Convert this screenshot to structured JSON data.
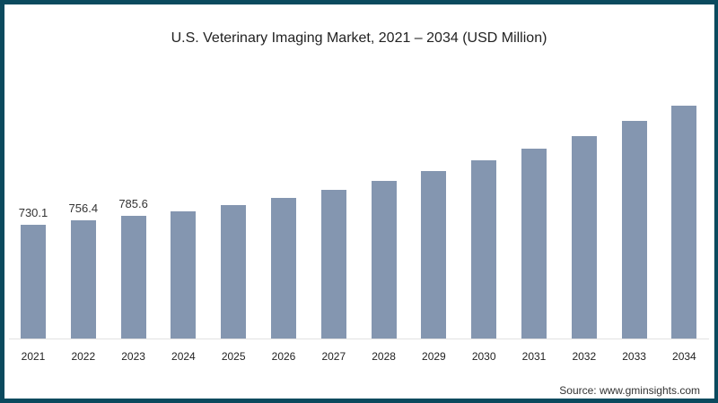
{
  "frame_color": "#0b4a5e",
  "bar_color": "#8496b0",
  "chart_data": {
    "type": "bar",
    "title": "U.S. Veterinary Imaging Market, 2021 – 2034 (USD Million)",
    "xlabel": "",
    "ylabel": "USD Million",
    "categories": [
      "2021",
      "2022",
      "2023",
      "2024",
      "2025",
      "2026",
      "2027",
      "2028",
      "2029",
      "2030",
      "2031",
      "2032",
      "2033",
      "2034"
    ],
    "values": [
      730.1,
      756.4,
      785.6,
      819,
      857,
      903,
      955,
      1012,
      1075,
      1145,
      1219,
      1300,
      1397,
      1495
    ],
    "data_labels": [
      "730.1",
      "756.4",
      "785.6",
      "",
      "",
      "",
      "",
      "",
      "",
      "",
      "",
      "",
      "",
      ""
    ],
    "grid": false,
    "legend": null
  },
  "source": "Source: www.gminsights.com"
}
